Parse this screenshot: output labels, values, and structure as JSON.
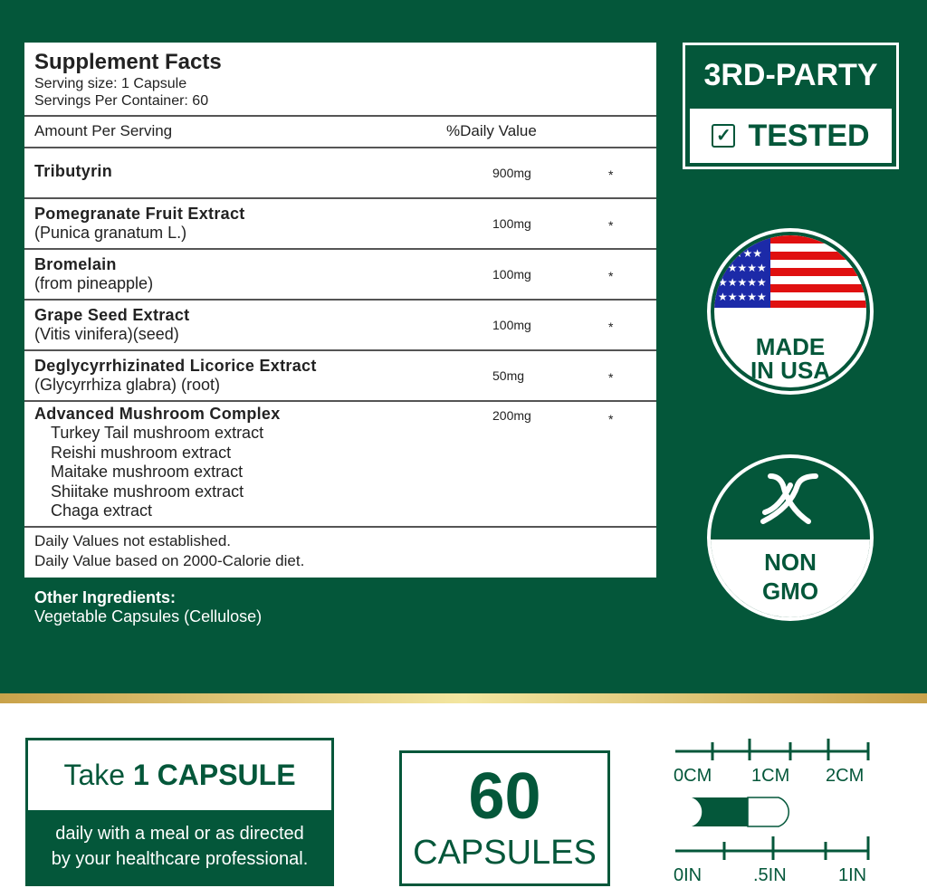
{
  "facts": {
    "title": "Supplement Facts",
    "serving_size": "Serving size: 1 Capsule",
    "servings_per_container": "Servings Per Container: 60",
    "amount_per_serving": "Amount Per Serving",
    "daily_value": "%Daily Value",
    "rows": [
      {
        "name": "Tributyrin",
        "desc": "",
        "amount": "900mg",
        "dv": "*"
      },
      {
        "name": "Pomegranate Fruit Extract",
        "desc": "(Punica granatum L.)",
        "amount": "100mg",
        "dv": "*"
      },
      {
        "name": "Bromelain",
        "desc": "(from pineapple)",
        "amount": "100mg",
        "dv": "*"
      },
      {
        "name": "Grape Seed Extract",
        "desc": "(Vitis vinifera)(seed)",
        "amount": "100mg",
        "dv": "*"
      },
      {
        "name": "Deglycyrrhizinated Licorice Extract",
        "desc": "(Glycyrrhiza glabra) (root)",
        "amount": "50mg",
        "dv": "*"
      }
    ],
    "complex": {
      "name": "Advanced Mushroom Complex",
      "amount": "200mg",
      "dv": "*",
      "items": [
        "Turkey Tail mushroom extract",
        "Reishi mushroom extract",
        "Maitake mushroom extract",
        "Shiitake mushroom extract",
        "Chaga extract"
      ]
    },
    "footnote1": "Daily Values not established.",
    "footnote2": "Daily Value based on 2000-Calorie diet."
  },
  "other": {
    "label": "Other Ingredients:",
    "value": "Vegetable Capsules (Cellulose)"
  },
  "badges": {
    "party_top": "3RD-PARTY",
    "party_bottom": "TESTED",
    "usa_1": "MADE",
    "usa_2": "IN USA",
    "gmo_1": "NON",
    "gmo_2": "GMO"
  },
  "dosage": {
    "take": "Take ",
    "bold": "1 CAPSULE",
    "line1": "daily with a meal or as directed",
    "line2": "by your healthcare professional."
  },
  "count": {
    "number": "60",
    "label": "CAPSULES"
  },
  "ruler": {
    "cm": [
      "0CM",
      "1CM",
      "2CM"
    ],
    "in": [
      "0IN",
      ".5IN",
      "1IN"
    ]
  },
  "colors": {
    "green": "#04573a",
    "gold": "#e8d48a"
  }
}
